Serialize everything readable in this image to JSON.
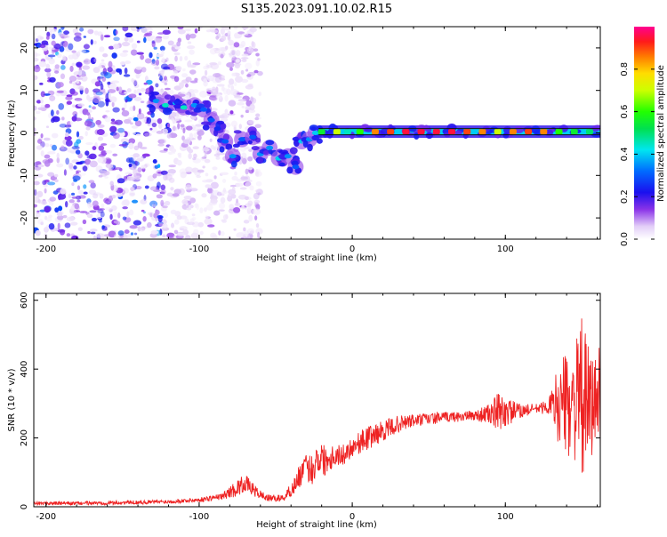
{
  "figure_title": "S135.2023.091.10.02.R15",
  "colors": {
    "snr_line": "#ee2222",
    "axis": "#000000",
    "ridge_track": "#111111"
  },
  "colorbar": {
    "label": "Normalized spectral amplitude",
    "ticks": [
      "0.0",
      "0.2",
      "0.4",
      "0.6",
      "0.8"
    ],
    "tick_values": [
      0.0,
      0.2,
      0.4,
      0.6,
      0.8
    ],
    "range": [
      0,
      1
    ],
    "colormap": "white-violet-purple-blue-cyan-green-yellow-orange-red-magenta"
  },
  "chart_data": [
    {
      "type": "heatmap",
      "xlabel": "Height of straight line (km)",
      "ylabel": "Frequency (Hz)",
      "xlim": [
        -208,
        162
      ],
      "ylim": [
        -25,
        25
      ],
      "x_ticks": [
        -200,
        -100,
        0,
        100
      ],
      "x_tick_labels": [
        "-200",
        "-100",
        "0",
        "100"
      ],
      "y_ticks": [
        -20,
        -10,
        0,
        10,
        20
      ],
      "y_tick_labels": [
        "-20",
        "-10",
        "0",
        "10",
        "20"
      ],
      "grid": false,
      "ridge": [
        {
          "x": -128,
          "y": 7.5,
          "amp": 0.35
        },
        {
          "x": -122,
          "y": 6.5,
          "amp": 0.45
        },
        {
          "x": -115,
          "y": 7.0,
          "amp": 0.4
        },
        {
          "x": -110,
          "y": 6.0,
          "amp": 0.45
        },
        {
          "x": -103,
          "y": 6.5,
          "amp": 0.35
        },
        {
          "x": -97,
          "y": 5.5,
          "amp": 0.3
        },
        {
          "x": -92,
          "y": 3.0,
          "amp": 0.3
        },
        {
          "x": -88,
          "y": 1.0,
          "amp": 0.25
        },
        {
          "x": -83,
          "y": -2.0,
          "amp": 0.3
        },
        {
          "x": -78,
          "y": -5.5,
          "amp": 0.35
        },
        {
          "x": -72,
          "y": -1.5,
          "amp": 0.3
        },
        {
          "x": -65,
          "y": -1.0,
          "amp": 0.3
        },
        {
          "x": -60,
          "y": -5.0,
          "amp": 0.35
        },
        {
          "x": -54,
          "y": -3.5,
          "amp": 0.35
        },
        {
          "x": -48,
          "y": -6.0,
          "amp": 0.4
        },
        {
          "x": -42,
          "y": -5.5,
          "amp": 0.35
        },
        {
          "x": -37,
          "y": -8.0,
          "amp": 0.3
        },
        {
          "x": -33,
          "y": -2.0,
          "amp": 0.4
        },
        {
          "x": -28,
          "y": -1.5,
          "amp": 0.35
        },
        {
          "x": -24,
          "y": 0.0,
          "amp": 0.4
        }
      ],
      "tone": {
        "frequency": 0.3,
        "x_start": -22,
        "x_end": 162,
        "segments": [
          {
            "x": -20,
            "amp": 0.55
          },
          {
            "x": -10,
            "amp": 0.7
          },
          {
            "x": -3,
            "amp": 0.45
          },
          {
            "x": 5,
            "amp": 0.6
          },
          {
            "x": 15,
            "amp": 0.85
          },
          {
            "x": 25,
            "amp": 0.9
          },
          {
            "x": 35,
            "amp": 0.95
          },
          {
            "x": 45,
            "amp": 0.95
          },
          {
            "x": 55,
            "amp": 0.95
          },
          {
            "x": 65,
            "amp": 0.95
          },
          {
            "x": 75,
            "amp": 0.9
          },
          {
            "x": 85,
            "amp": 0.85
          },
          {
            "x": 95,
            "amp": 0.7
          },
          {
            "x": 105,
            "amp": 0.85
          },
          {
            "x": 115,
            "amp": 0.9
          },
          {
            "x": 125,
            "amp": 0.85
          },
          {
            "x": 135,
            "amp": 0.6
          },
          {
            "x": 145,
            "amp": 0.55
          },
          {
            "x": 155,
            "amp": 0.5
          }
        ]
      },
      "noise_region": {
        "x_start": -208,
        "x_end": -60,
        "y_min": -25,
        "y_max": 25
      }
    },
    {
      "type": "line",
      "xlabel": "Height of straight line (km)",
      "ylabel": "SNR (10 * v/v)",
      "xlim": [
        -208,
        162
      ],
      "ylim": [
        0,
        620
      ],
      "x_ticks": [
        -200,
        -100,
        0,
        100
      ],
      "x_tick_labels": [
        "-200",
        "-100",
        "0",
        "100"
      ],
      "y_ticks": [
        0,
        200,
        400,
        600
      ],
      "y_tick_labels": [
        "0",
        "200",
        "400",
        "600"
      ],
      "grid": false,
      "series": [
        {
          "color": "#ee2222",
          "x": [
            -208,
            -180,
            -150,
            -120,
            -100,
            -85,
            -75,
            -70,
            -62,
            -55,
            -45,
            -38,
            -32,
            -26,
            -22,
            -18,
            -12,
            -6,
            0,
            10,
            20,
            30,
            40,
            50,
            60,
            70,
            80,
            90,
            95,
            100,
            110,
            120,
            128,
            135,
            140,
            145,
            150,
            155,
            160,
            162
          ],
          "y": [
            10,
            10,
            12,
            15,
            20,
            30,
            55,
            70,
            40,
            25,
            25,
            60,
            110,
            110,
            150,
            135,
            150,
            150,
            175,
            200,
            220,
            240,
            250,
            255,
            260,
            262,
            265,
            270,
            272,
            275,
            278,
            285,
            290,
            300,
            300,
            300,
            310,
            290,
            310,
            320
          ],
          "spread": [
            5,
            5,
            6,
            6,
            7,
            9,
            25,
            25,
            15,
            10,
            10,
            25,
            40,
            45,
            60,
            45,
            35,
            30,
            30,
            35,
            30,
            25,
            20,
            18,
            15,
            15,
            15,
            30,
            60,
            45,
            20,
            15,
            20,
            120,
            150,
            160,
            240,
            160,
            160,
            160
          ]
        }
      ]
    }
  ]
}
